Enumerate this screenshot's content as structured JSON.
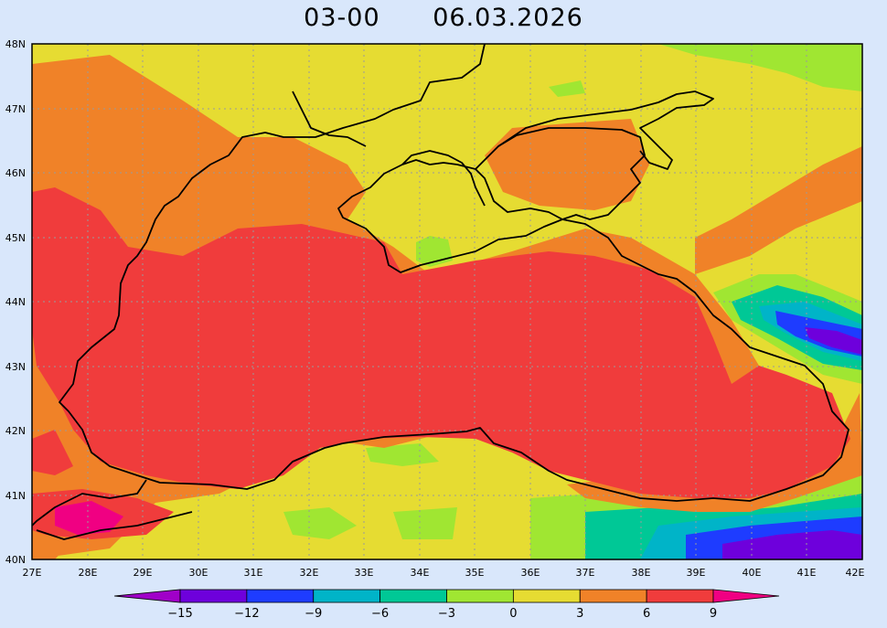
{
  "title": {
    "time": "03-00",
    "date": "06.03.2026"
  },
  "map": {
    "region": "Black Sea",
    "lon_range": [
      27,
      42
    ],
    "lat_range": [
      40,
      48
    ],
    "lon_ticks": [
      "27E",
      "28E",
      "29E",
      "30E",
      "31E",
      "32E",
      "33E",
      "34E",
      "35E",
      "36E",
      "37E",
      "38E",
      "39E",
      "40E",
      "41E",
      "42E"
    ],
    "lat_ticks": [
      "40N",
      "41N",
      "42N",
      "43N",
      "44N",
      "45N",
      "46N",
      "47N",
      "48N"
    ],
    "grid": "dotted"
  },
  "colorbar": {
    "labels": [
      "-15",
      "-12",
      "-9",
      "-6",
      "-3",
      "0",
      "3",
      "6",
      "9"
    ],
    "bins": [
      {
        "color": "#a000c8"
      },
      {
        "color": "#6e00dc"
      },
      {
        "color": "#1e3cff"
      },
      {
        "color": "#00b4c8"
      },
      {
        "color": "#00c896"
      },
      {
        "color": "#a0e632"
      },
      {
        "color": "#e6dc32"
      },
      {
        "color": "#f08228"
      },
      {
        "color": "#f03c3c"
      },
      {
        "color": "#f00082"
      }
    ]
  },
  "colors": {
    "background": "#d9e7fb",
    "land_base": "#e6dc32",
    "sea": "#f03c3c",
    "coastal_band": "#f08228",
    "coast_line": "#000000"
  }
}
